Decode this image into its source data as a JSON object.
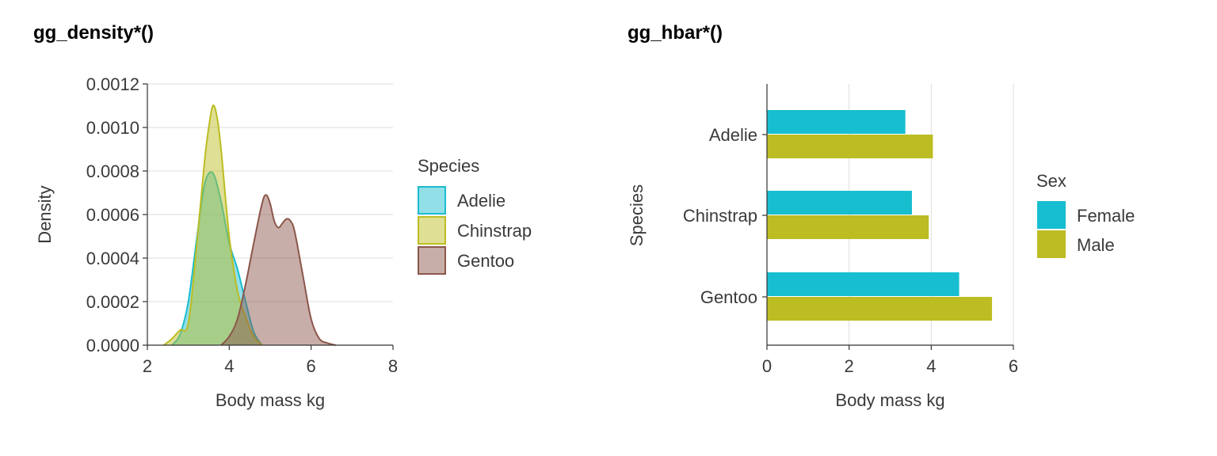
{
  "chart_data": [
    {
      "type": "area",
      "title": "gg_density*()",
      "xlabel": "Body mass kg",
      "ylabel": "Density",
      "xlim": [
        2,
        8
      ],
      "ylim": [
        0,
        0.0012
      ],
      "x_ticks": [
        2,
        4,
        6,
        8
      ],
      "x_tick_labels": [
        "2",
        "4",
        "6",
        "8"
      ],
      "y_ticks": [
        0,
        0.0002,
        0.0004,
        0.0006,
        0.0008,
        0.001,
        0.0012
      ],
      "y_tick_labels": [
        "0.0000",
        "0.0002",
        "0.0004",
        "0.0006",
        "0.0008",
        "0.0010",
        "0.0012"
      ],
      "legend": {
        "title": "Species",
        "position": "right"
      },
      "grid": "horizontal",
      "series": [
        {
          "name": "Adelie",
          "color": "#1bbccf",
          "x": [
            2.6,
            2.8,
            3.0,
            3.2,
            3.4,
            3.6,
            3.8,
            4.0,
            4.2,
            4.4,
            4.6,
            4.8
          ],
          "y": [
            0.0,
            5e-05,
            0.0002,
            0.00048,
            0.00074,
            0.00079,
            0.00066,
            0.00047,
            0.00035,
            0.0002,
            6e-05,
            0.0
          ]
        },
        {
          "name": "Chinstrap",
          "color": "#bcbd22",
          "x": [
            2.4,
            2.6,
            2.8,
            3.0,
            3.2,
            3.4,
            3.5,
            3.6,
            3.7,
            3.8,
            4.0,
            4.2,
            4.4,
            4.6,
            4.8
          ],
          "y": [
            0.0,
            3e-05,
            7e-05,
            0.0001,
            0.00045,
            0.00085,
            0.001,
            0.0011,
            0.00105,
            0.0009,
            0.0005,
            0.00025,
            0.00013,
            4e-05,
            0.0
          ]
        },
        {
          "name": "Gentoo",
          "color": "#8c564b",
          "x": [
            3.8,
            4.0,
            4.2,
            4.4,
            4.6,
            4.8,
            4.9,
            5.0,
            5.1,
            5.2,
            5.3,
            5.4,
            5.5,
            5.6,
            5.8,
            6.0,
            6.2,
            6.4,
            6.6
          ],
          "y": [
            0.0,
            4e-05,
            0.00012,
            0.00028,
            0.00047,
            0.00065,
            0.00069,
            0.00065,
            0.00057,
            0.00054,
            0.00056,
            0.00058,
            0.00057,
            0.00052,
            0.00032,
            0.00012,
            3e-05,
            1e-05,
            0.0
          ]
        }
      ]
    },
    {
      "type": "bar",
      "orientation": "horizontal",
      "title": "gg_hbar*()",
      "xlabel": "Body mass kg",
      "ylabel": "Species",
      "xlim": [
        0,
        6
      ],
      "x_ticks": [
        0,
        2,
        4,
        6
      ],
      "x_tick_labels": [
        "0",
        "2",
        "4",
        "6"
      ],
      "categories": [
        "Adelie",
        "Chinstrap",
        "Gentoo"
      ],
      "legend": {
        "title": "Sex",
        "position": "right"
      },
      "grid": "vertical",
      "series": [
        {
          "name": "Female",
          "color": "#17becf",
          "values": [
            3.37,
            3.53,
            4.68
          ]
        },
        {
          "name": "Male",
          "color": "#bcbd22",
          "values": [
            4.04,
            3.94,
            5.48
          ]
        }
      ]
    }
  ]
}
